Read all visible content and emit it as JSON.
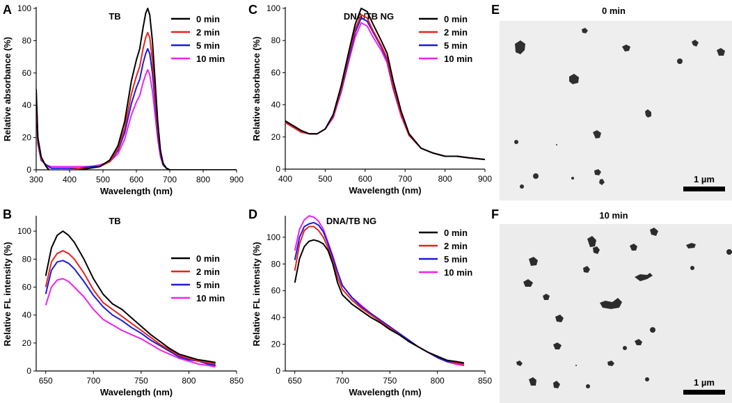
{
  "chart_data": [
    {
      "panel": "A",
      "type": "line",
      "title": "TB",
      "xlabel": "Wavelength (nm)",
      "ylabel": "Relative absorbance (%)",
      "xlim": [
        300,
        900
      ],
      "ylim": [
        0,
        100
      ],
      "xticks": [
        300,
        400,
        500,
        600,
        700,
        800,
        900
      ],
      "yticks": [
        0,
        20,
        40,
        60,
        80,
        100
      ],
      "legend": "top-right",
      "series": [
        {
          "name": "0 min",
          "color": "#000000",
          "x": [
            300,
            305,
            315,
            330,
            345,
            360,
            380,
            400,
            430,
            460,
            490,
            520,
            545,
            565,
            585,
            600,
            610,
            620,
            628,
            634,
            640,
            648,
            656,
            664,
            672,
            680,
            690,
            700,
            720,
            760,
            800,
            850,
            900
          ],
          "y": [
            50,
            20,
            8,
            2,
            -2,
            -3,
            -3,
            -2,
            0,
            1,
            2,
            6,
            15,
            30,
            55,
            68,
            75,
            88,
            97,
            100,
            96,
            80,
            55,
            30,
            12,
            4,
            1,
            0,
            0,
            0,
            0,
            0,
            0
          ]
        },
        {
          "name": "2 min",
          "color": "#e8221b",
          "x": [
            300,
            305,
            315,
            330,
            345,
            360,
            380,
            400,
            430,
            460,
            490,
            520,
            545,
            565,
            585,
            600,
            610,
            620,
            628,
            634,
            640,
            648,
            656,
            664,
            672,
            680,
            690,
            700,
            720,
            760,
            800,
            850,
            900
          ],
          "y": [
            48,
            18,
            7,
            2,
            -1,
            -1,
            0,
            0,
            1,
            1,
            2,
            5,
            13,
            26,
            47,
            58,
            64,
            75,
            82,
            85,
            82,
            68,
            47,
            26,
            11,
            4,
            1,
            0,
            0,
            0,
            0,
            0,
            0
          ]
        },
        {
          "name": "5 min",
          "color": "#1a1adc",
          "x": [
            300,
            305,
            315,
            330,
            345,
            360,
            380,
            400,
            430,
            460,
            490,
            520,
            545,
            565,
            585,
            600,
            610,
            620,
            628,
            634,
            640,
            648,
            656,
            664,
            672,
            680,
            690,
            700,
            720,
            760,
            800,
            850,
            900
          ],
          "y": [
            46,
            17,
            6,
            3,
            1,
            1,
            1,
            1,
            1,
            2,
            2,
            5,
            12,
            23,
            41,
            51,
            56,
            66,
            72,
            75,
            72,
            60,
            42,
            23,
            10,
            3,
            1,
            0,
            0,
            0,
            0,
            0,
            0
          ]
        },
        {
          "name": "10 min",
          "color": "#ee22ee",
          "x": [
            300,
            305,
            315,
            330,
            345,
            360,
            380,
            400,
            430,
            460,
            490,
            520,
            545,
            565,
            585,
            600,
            610,
            620,
            628,
            634,
            640,
            648,
            656,
            664,
            672,
            680,
            690,
            700,
            720,
            760,
            800,
            850,
            900
          ],
          "y": [
            44,
            16,
            6,
            3,
            2,
            2,
            2,
            2,
            2,
            2,
            3,
            5,
            10,
            19,
            34,
            42,
            46,
            54,
            59,
            62,
            59,
            49,
            34,
            19,
            8,
            3,
            1,
            0,
            0,
            0,
            0,
            0,
            0
          ]
        }
      ]
    },
    {
      "panel": "B",
      "type": "line",
      "title": "TB",
      "xlabel": "Wavelength (nm)",
      "ylabel": "Relative FL intensity (%)",
      "xlim": [
        640,
        850
      ],
      "ylim": [
        0,
        110
      ],
      "xticks": [
        650,
        700,
        750,
        800,
        850
      ],
      "yticks": [
        0,
        20,
        40,
        60,
        80,
        100
      ],
      "legend": "top-right",
      "series": [
        {
          "name": "0 min",
          "color": "#000000",
          "x": [
            650,
            656,
            662,
            668,
            674,
            680,
            690,
            700,
            710,
            720,
            730,
            740,
            750,
            760,
            770,
            780,
            790,
            800,
            810,
            820,
            828
          ],
          "y": [
            68,
            88,
            97,
            100,
            97,
            92,
            80,
            66,
            55,
            48,
            44,
            38,
            32,
            26,
            21,
            16,
            12,
            10,
            8,
            7,
            6
          ]
        },
        {
          "name": "2 min",
          "color": "#e8221b",
          "x": [
            650,
            656,
            662,
            668,
            674,
            680,
            690,
            700,
            710,
            720,
            730,
            740,
            750,
            760,
            770,
            780,
            790,
            800,
            810,
            820,
            828
          ],
          "y": [
            60,
            78,
            84,
            86,
            84,
            80,
            70,
            58,
            49,
            44,
            39,
            34,
            29,
            24,
            19,
            15,
            11,
            9,
            7,
            6,
            5
          ]
        },
        {
          "name": "5 min",
          "color": "#1a1adc",
          "x": [
            650,
            656,
            662,
            668,
            674,
            680,
            690,
            700,
            710,
            720,
            730,
            740,
            750,
            760,
            770,
            780,
            790,
            800,
            810,
            820,
            828
          ],
          "y": [
            55,
            72,
            78,
            79,
            77,
            73,
            64,
            54,
            46,
            40,
            36,
            31,
            27,
            22,
            18,
            14,
            10,
            8,
            7,
            5,
            4
          ]
        },
        {
          "name": "10 min",
          "color": "#ee22ee",
          "x": [
            650,
            656,
            662,
            668,
            674,
            680,
            690,
            700,
            710,
            720,
            730,
            740,
            750,
            760,
            770,
            780,
            790,
            800,
            810,
            820,
            828
          ],
          "y": [
            47,
            60,
            65,
            66,
            64,
            60,
            53,
            44,
            37,
            33,
            29,
            26,
            23,
            19,
            15,
            12,
            9,
            7,
            5,
            4,
            3
          ]
        }
      ]
    },
    {
      "panel": "C",
      "type": "line",
      "title": "DNA/TB NG",
      "xlabel": "Wavelength (nm)",
      "ylabel": "Relative absorbance (%)",
      "xlim": [
        400,
        900
      ],
      "ylim": [
        0,
        100
      ],
      "xticks": [
        400,
        500,
        600,
        700,
        800,
        900
      ],
      "yticks": [
        0,
        20,
        40,
        60,
        80,
        100
      ],
      "legend": "top-right",
      "series": [
        {
          "name": "0 min",
          "color": "#000000",
          "x": [
            400,
            420,
            440,
            460,
            480,
            500,
            520,
            540,
            560,
            575,
            590,
            605,
            620,
            640,
            655,
            670,
            690,
            710,
            740,
            770,
            800,
            830,
            860,
            900
          ],
          "y": [
            30,
            27,
            24,
            22,
            22,
            25,
            34,
            52,
            74,
            90,
            100,
            98,
            90,
            80,
            72,
            55,
            36,
            22,
            13,
            10,
            8,
            8,
            7,
            6
          ]
        },
        {
          "name": "2 min",
          "color": "#e8221b",
          "x": [
            400,
            420,
            440,
            460,
            480,
            500,
            520,
            540,
            560,
            575,
            590,
            605,
            620,
            640,
            655,
            670,
            690,
            710,
            740,
            770,
            800,
            830,
            860,
            900
          ],
          "y": [
            29,
            26,
            23,
            22,
            22,
            25,
            33,
            50,
            72,
            87,
            96,
            94,
            86,
            77,
            69,
            52,
            34,
            21,
            13,
            10,
            8,
            8,
            7,
            6
          ]
        },
        {
          "name": "5 min",
          "color": "#1a1adc",
          "x": [
            400,
            420,
            440,
            460,
            480,
            500,
            520,
            540,
            560,
            575,
            590,
            605,
            620,
            640,
            655,
            670,
            690,
            710,
            740,
            770,
            800,
            830,
            860,
            900
          ],
          "y": [
            29,
            26,
            23,
            22,
            22,
            25,
            33,
            49,
            70,
            85,
            94,
            92,
            85,
            76,
            68,
            51,
            34,
            21,
            13,
            10,
            8,
            8,
            7,
            6
          ]
        },
        {
          "name": "10 min",
          "color": "#ee22ee",
          "x": [
            400,
            420,
            440,
            460,
            480,
            500,
            520,
            540,
            560,
            575,
            590,
            605,
            620,
            640,
            655,
            670,
            690,
            710,
            740,
            770,
            800,
            830,
            860,
            900
          ],
          "y": [
            29,
            26,
            23,
            22,
            22,
            25,
            32,
            48,
            68,
            82,
            91,
            89,
            82,
            74,
            66,
            50,
            33,
            21,
            13,
            10,
            8,
            8,
            7,
            6
          ]
        }
      ]
    },
    {
      "panel": "D",
      "type": "line",
      "title": "DNA/TB NG",
      "xlabel": "Wavelength (nm)",
      "ylabel": "Relative FL intensity (%)",
      "xlim": [
        640,
        850
      ],
      "ylim": [
        0,
        115
      ],
      "xticks": [
        650,
        700,
        750,
        800,
        850
      ],
      "yticks": [
        0,
        20,
        40,
        60,
        80,
        100
      ],
      "legend": "top-right",
      "series": [
        {
          "name": "0 min",
          "color": "#000000",
          "x": [
            650,
            655,
            660,
            665,
            670,
            675,
            680,
            685,
            690,
            695,
            700,
            710,
            720,
            730,
            740,
            750,
            760,
            770,
            780,
            790,
            800,
            810,
            820,
            828
          ],
          "y": [
            66,
            84,
            93,
            97,
            98,
            97,
            95,
            90,
            80,
            66,
            57,
            50,
            45,
            40,
            36,
            31,
            27,
            22,
            18,
            14,
            11,
            8,
            7,
            6
          ]
        },
        {
          "name": "2 min",
          "color": "#e8221b",
          "x": [
            650,
            655,
            660,
            665,
            670,
            675,
            680,
            685,
            690,
            695,
            700,
            710,
            720,
            730,
            740,
            750,
            760,
            770,
            780,
            790,
            800,
            810,
            820,
            828
          ],
          "y": [
            75,
            95,
            105,
            108,
            108,
            105,
            100,
            92,
            82,
            70,
            61,
            53,
            47,
            42,
            37,
            32,
            27,
            22,
            18,
            14,
            11,
            8,
            6,
            5
          ]
        },
        {
          "name": "5 min",
          "color": "#1a1adc",
          "x": [
            650,
            655,
            660,
            665,
            670,
            675,
            680,
            685,
            690,
            695,
            700,
            710,
            720,
            730,
            740,
            750,
            760,
            770,
            780,
            790,
            800,
            810,
            820,
            828
          ],
          "y": [
            83,
            100,
            108,
            110,
            111,
            109,
            104,
            95,
            85,
            74,
            64,
            55,
            48,
            43,
            38,
            33,
            28,
            23,
            18,
            14,
            10,
            7,
            6,
            5
          ]
        },
        {
          "name": "10 min",
          "color": "#ee22ee",
          "x": [
            650,
            655,
            660,
            665,
            670,
            675,
            680,
            685,
            690,
            695,
            700,
            710,
            720,
            730,
            740,
            750,
            760,
            770,
            780,
            790,
            800,
            810,
            820,
            828
          ],
          "y": [
            90,
            106,
            113,
            116,
            115,
            112,
            106,
            96,
            86,
            74,
            64,
            55,
            49,
            43,
            38,
            33,
            28,
            23,
            18,
            14,
            10,
            7,
            5,
            4
          ]
        }
      ]
    }
  ],
  "panel_labels": {
    "a": "A",
    "b": "B",
    "c": "C",
    "d": "D",
    "e": "E",
    "f": "F"
  },
  "micrographs": {
    "e": {
      "title": "0 min",
      "scale_bar": "1 µm"
    },
    "f": {
      "title": "10 min",
      "scale_bar": "1 µm"
    }
  }
}
